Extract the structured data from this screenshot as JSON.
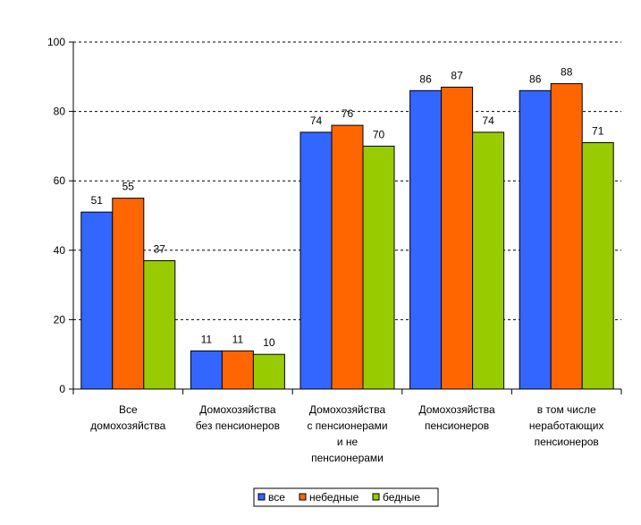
{
  "chart_data": {
    "type": "bar",
    "title": "",
    "xlabel": "",
    "ylabel": "",
    "ylim": [
      0,
      100
    ],
    "yticks": [
      0,
      20,
      40,
      60,
      80,
      100
    ],
    "grid": true,
    "legend_position": "bottom-center",
    "categories": [
      [
        "Все",
        "домохозяйства"
      ],
      [
        "Домохозяйства",
        "без пенсионеров"
      ],
      [
        "Домохозяйства",
        "с пенсионерами",
        "и не",
        "пенсионерами"
      ],
      [
        "Домохозяйства",
        "пенсионеров"
      ],
      [
        "в том числе",
        "неработающих",
        "пенсионеров"
      ]
    ],
    "series": [
      {
        "name": "все",
        "color": "#3366FF",
        "values": [
          51,
          11,
          74,
          86,
          86
        ],
        "labels": [
          "51",
          "11",
          "74",
          "86",
          "86"
        ]
      },
      {
        "name": "небедные",
        "color": "#FF6600",
        "values": [
          55,
          11,
          76,
          87,
          88
        ],
        "labels": [
          "55",
          "11",
          "76",
          "87",
          "88"
        ]
      },
      {
        "name": "бедные",
        "color": "#99CC00",
        "values": [
          37,
          10,
          70,
          74,
          71
        ],
        "labels": [
          "37",
          "10",
          "70",
          "74",
          "71"
        ]
      }
    ]
  }
}
